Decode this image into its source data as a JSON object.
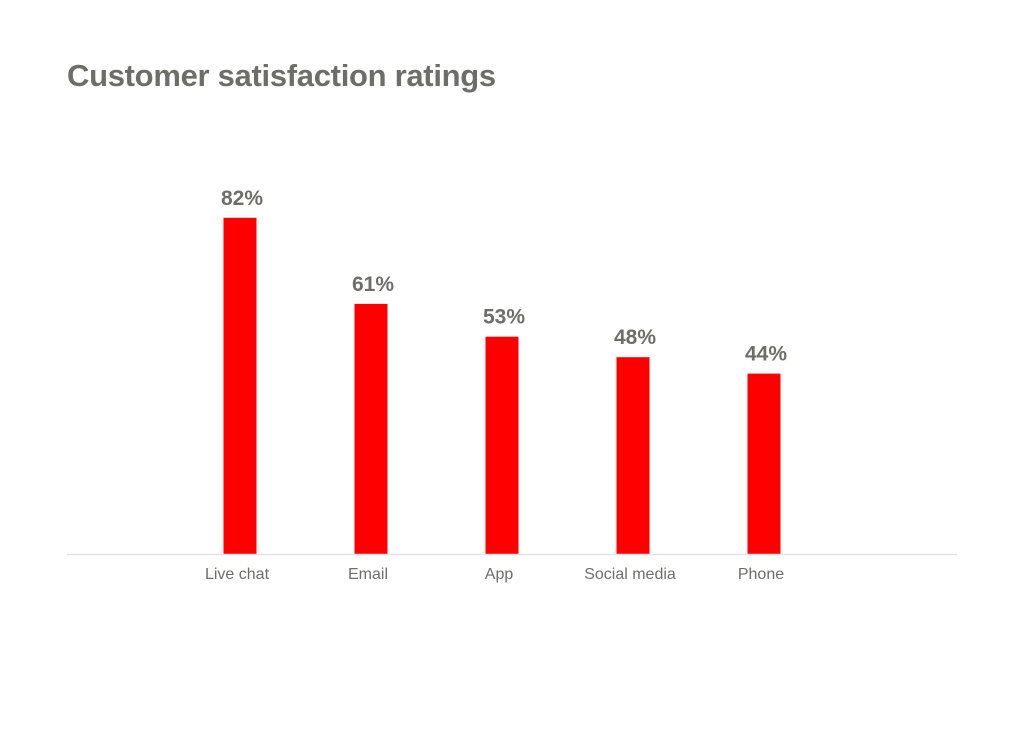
{
  "chart_data": {
    "type": "bar",
    "title": "Customer satisfaction ratings",
    "categories": [
      "Live chat",
      "Email",
      "App",
      "Social media",
      "Phone"
    ],
    "values": [
      82,
      61,
      53,
      48,
      44
    ],
    "value_labels": [
      "82%",
      "61%",
      "53%",
      "48%",
      "44%"
    ],
    "unit": "%",
    "ylim": [
      0,
      100
    ],
    "grid": false,
    "legend": "none",
    "bar_color": "#ff0000",
    "text_color": "#6e6e69",
    "axis_color": "#e2e2e2"
  }
}
